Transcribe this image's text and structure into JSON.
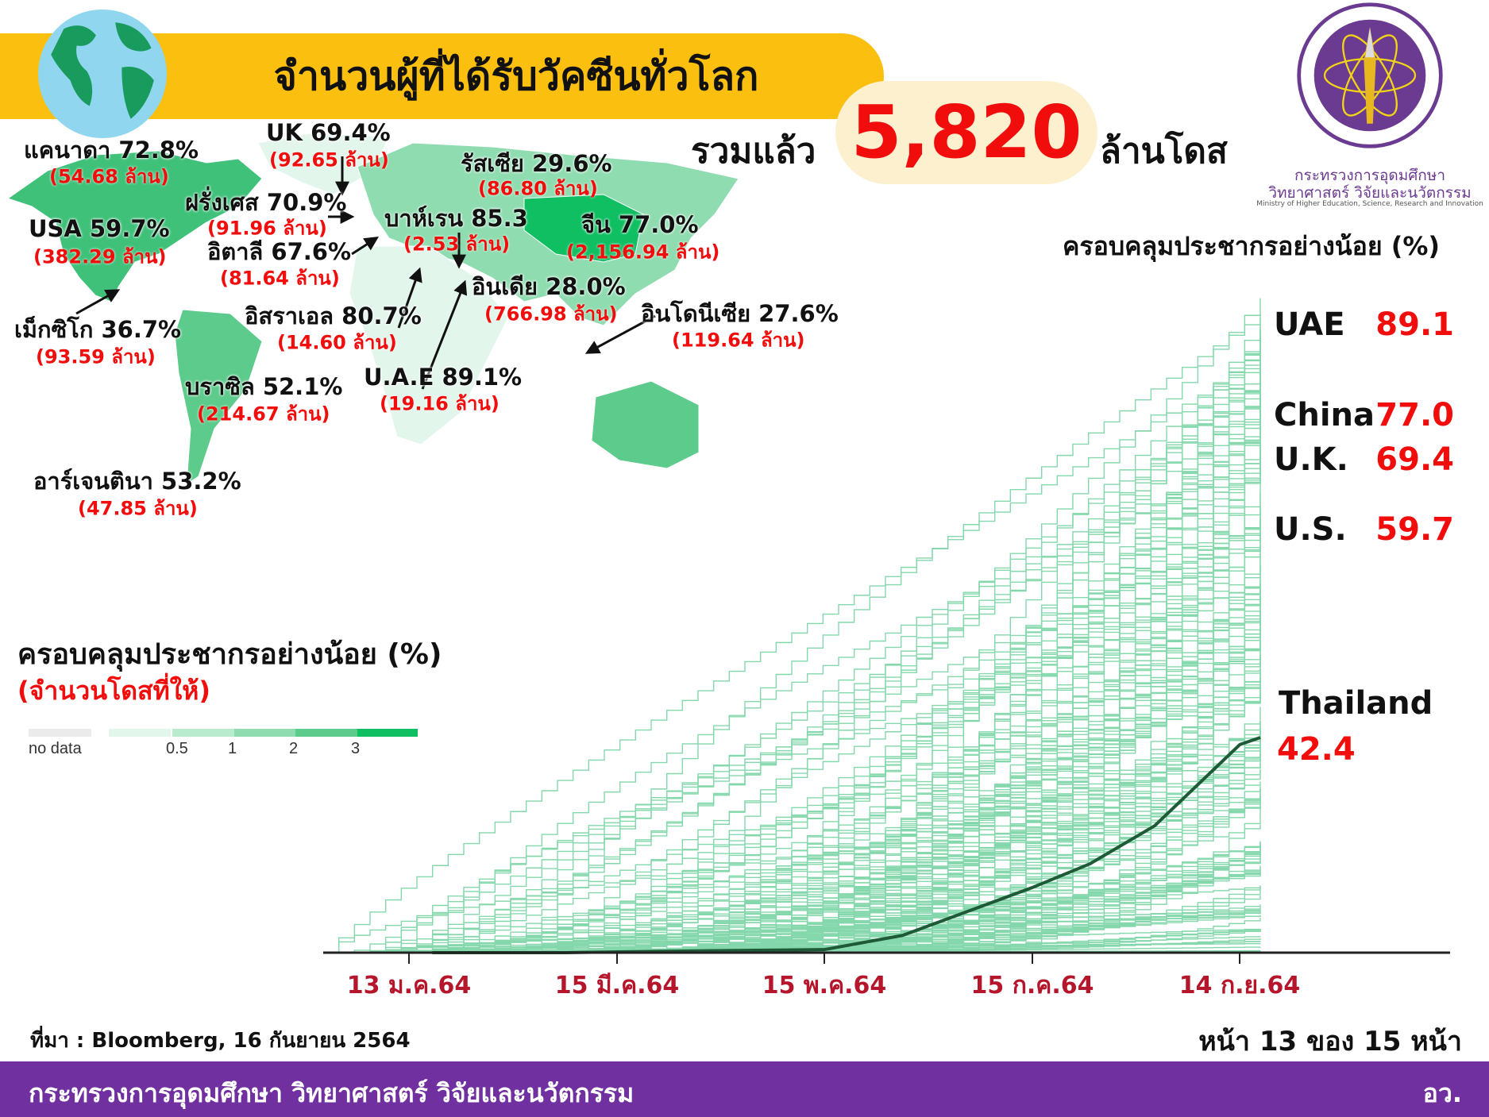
{
  "header": {
    "title": "จำนวนผู้ที่ได้รับวัคซีนทั่วโลก",
    "total_prefix": "รวมแล้ว",
    "total_value": "5,820",
    "total_unit": "ล้านโดส"
  },
  "logo": {
    "name_th_1": "กระทรวงการอุดมศึกษา",
    "name_th_2": "วิทยาศาสตร์ วิจัยและนวัตกรรม",
    "name_en": "Ministry of Higher Education, Science, Research and Innovation"
  },
  "map": {
    "labels": [
      {
        "name": "แคนาดา 72.8%",
        "doses": "(54.68 ล้าน)"
      },
      {
        "name": "UK 69.4%",
        "doses": "(92.65 ล้าน)"
      },
      {
        "name": "รัสเซีย 29.6%",
        "doses": "(86.80 ล้าน)"
      },
      {
        "name": "ฝรั่งเศส 70.9%",
        "doses": "(91.96 ล้าน)"
      },
      {
        "name": "USA 59.7%",
        "doses": "(382.29 ล้าน)"
      },
      {
        "name": "อิตาลี 67.6%",
        "doses": "(81.64 ล้าน)"
      },
      {
        "name": "บาห์เรน 85.3",
        "doses": "(2.53 ล้าน)"
      },
      {
        "name": "จีน 77.0%",
        "doses": "(2,156.94 ล้าน)"
      },
      {
        "name": "อินเดีย 28.0%",
        "doses": "(766.98 ล้าน)"
      },
      {
        "name": "อินโดนีเซีย 27.6%",
        "doses": "(119.64 ล้าน)"
      },
      {
        "name": "เม็กซิโก 36.7%",
        "doses": "(93.59 ล้าน)"
      },
      {
        "name": "อิสราเอล 80.7%",
        "doses": "(14.60 ล้าน)"
      },
      {
        "name": "U.A.E 89.1%",
        "doses": "(19.16 ล้าน)"
      },
      {
        "name": "บราซิล 52.1%",
        "doses": "(214.67 ล้าน)"
      },
      {
        "name": "อาร์เจนตินา 53.2%",
        "doses": "(47.85 ล้าน)"
      }
    ],
    "legend_title": "ครอบคลุมประชากรอย่างน้อย (%)",
    "legend_subtitle": "(จำนวนโดสที่ให้)",
    "legend": [
      {
        "label": "no data",
        "color": "#ebebeb"
      },
      {
        "label": "",
        "color": "#e3f6ec"
      },
      {
        "label": "0.5",
        "color": "#b9ebcf"
      },
      {
        "label": "1",
        "color": "#8fdcb0"
      },
      {
        "label": "2",
        "color": "#5ccb8b"
      },
      {
        "label": "3",
        "color": "#0fbf62"
      }
    ]
  },
  "chart_data": {
    "type": "line",
    "title": "ครอบคลุมประชากรอย่างน้อย (%)",
    "x_ticks": [
      "13 ม.ค.64",
      "15 มี.ค.64",
      "15 พ.ค.64",
      "15 ก.ค.64",
      "14 ก.ย.64"
    ],
    "ylim": [
      0,
      135
    ],
    "grid": false,
    "highlighted": [
      {
        "name": "UAE",
        "value": "89.1"
      },
      {
        "name": "China",
        "value": "77.0"
      },
      {
        "name": "U.K.",
        "value": "69.4"
      },
      {
        "name": "U.S.",
        "value": "59.7"
      }
    ],
    "thailand": {
      "name": "Thailand",
      "value": "42.4",
      "points": [
        [
          "2021-02-28",
          0
        ],
        [
          "2021-04-01",
          0.3
        ],
        [
          "2021-05-15",
          0.6
        ],
        [
          "2021-06-07",
          3.4
        ],
        [
          "2021-07-15",
          12.8
        ],
        [
          "2021-08-01",
          17.5
        ],
        [
          "2021-08-20",
          25
        ],
        [
          "2021-09-14",
          41
        ],
        [
          "2021-09-20",
          42.4
        ]
      ]
    },
    "colors": {
      "series": "#22b86a",
      "highlight": "#1d5a35"
    }
  },
  "footer": {
    "source": "ที่มา : Bloomberg, 16 กันยายน 2564",
    "page": "หน้า 13 ของ 15 หน้า",
    "ministry": "กระทรวงการอุดมศึกษา วิทยาศาสตร์ วิจัยและนวัตกรรม",
    "short": "อว."
  }
}
